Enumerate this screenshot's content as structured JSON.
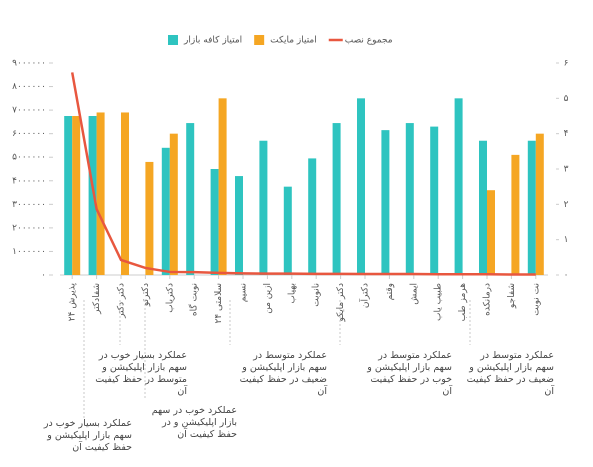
{
  "chart_data": {
    "type": "bar-line",
    "categories": [
      "پذیرش ۲۴",
      "شفادکتر",
      "دکتر دکتر",
      "دکترتو",
      "دکتریاب",
      "نوبت گاه",
      "سلامتی ۲۴",
      "نسیم",
      "ازین من",
      "بهیاب",
      "نانوبت",
      "دکتر مایکو",
      "دکترآن",
      "وقتم",
      "ایمش",
      "طبیب یاب",
      "هرمز طب",
      "درمانکده",
      "شفاجو",
      "نت نوبت"
    ],
    "series": [
      {
        "name": "امتیاز کافه بازار",
        "color": "#2ec4c0",
        "axis": "y2",
        "values": [
          4.5,
          4.5,
          null,
          null,
          3.6,
          4.3,
          3.0,
          2.8,
          3.8,
          2.5,
          3.3,
          4.3,
          5.0,
          4.1,
          4.3,
          4.2,
          5.0,
          3.8,
          null,
          3.8
        ]
      },
      {
        "name": "امتیاز مایکت",
        "color": "#f5a623",
        "axis": "y2",
        "values": [
          4.5,
          4.6,
          4.6,
          3.2,
          4.0,
          null,
          5.0,
          null,
          null,
          null,
          null,
          null,
          null,
          null,
          null,
          null,
          null,
          2.4,
          3.4,
          4.0
        ]
      },
      {
        "name": "مجموع نصب",
        "color": "#e8573f",
        "type": "line",
        "values": [
          8600000,
          2800000,
          640000,
          300000,
          130000,
          120000,
          90000,
          70000,
          60000,
          60000,
          50000,
          50000,
          40000,
          40000,
          40000,
          30000,
          30000,
          30000,
          20000,
          20000
        ]
      }
    ],
    "ylim": [
      0,
      9000000
    ],
    "yticks": [
      {
        "value": 0,
        "label": "۰"
      },
      {
        "value": 1000000,
        "label": "۱۰۰۰۰۰۰"
      },
      {
        "value": 2000000,
        "label": "۲۰۰۰۰۰۰"
      },
      {
        "value": 3000000,
        "label": "۳۰۰۰۰۰۰"
      },
      {
        "value": 4000000,
        "label": "۴۰۰۰۰۰۰"
      },
      {
        "value": 5000000,
        "label": "۵۰۰۰۰۰۰"
      },
      {
        "value": 6000000,
        "label": "۶۰۰۰۰۰۰"
      },
      {
        "value": 7000000,
        "label": "۷۰۰۰۰۰۰"
      },
      {
        "value": 8000000,
        "label": "۸۰۰۰۰۰۰"
      },
      {
        "value": 9000000,
        "label": "۹۰۰۰۰۰۰"
      }
    ],
    "y2lim": [
      0,
      6
    ],
    "y2ticks": [
      {
        "value": 0,
        "label": "۰"
      },
      {
        "value": 1,
        "label": "۱"
      },
      {
        "value": 2,
        "label": "۲"
      },
      {
        "value": 3,
        "label": "۳"
      },
      {
        "value": 4,
        "label": "۴"
      },
      {
        "value": 5,
        "label": "۵"
      },
      {
        "value": 6,
        "label": "۶"
      }
    ],
    "legend": "top",
    "annotations": [
      "عملکرد بسیار خوب در سهم بازار اپلیکیشن و حفظ کیفیت آن",
      "عملکرد بسیار خوب در سهم بازار اپلیکیشن و متوسط در حفظ کیفیت آن",
      "عملکرد خوب در سهم بازار اپلیکیشن و در حفظ کیفیت آن",
      "عملکرد متوسط در سهم بازار اپلیکیشن و ضعیف در حفظ کیفیت آن",
      "عملکرد متوسط در سهم بازار اپلیکیشن و خوب در حفظ کیفیت آن",
      "عملکرد متوسط در سهم بازار اپلیکیشن و ضعیف در حفظ کیفیت آن"
    ]
  }
}
